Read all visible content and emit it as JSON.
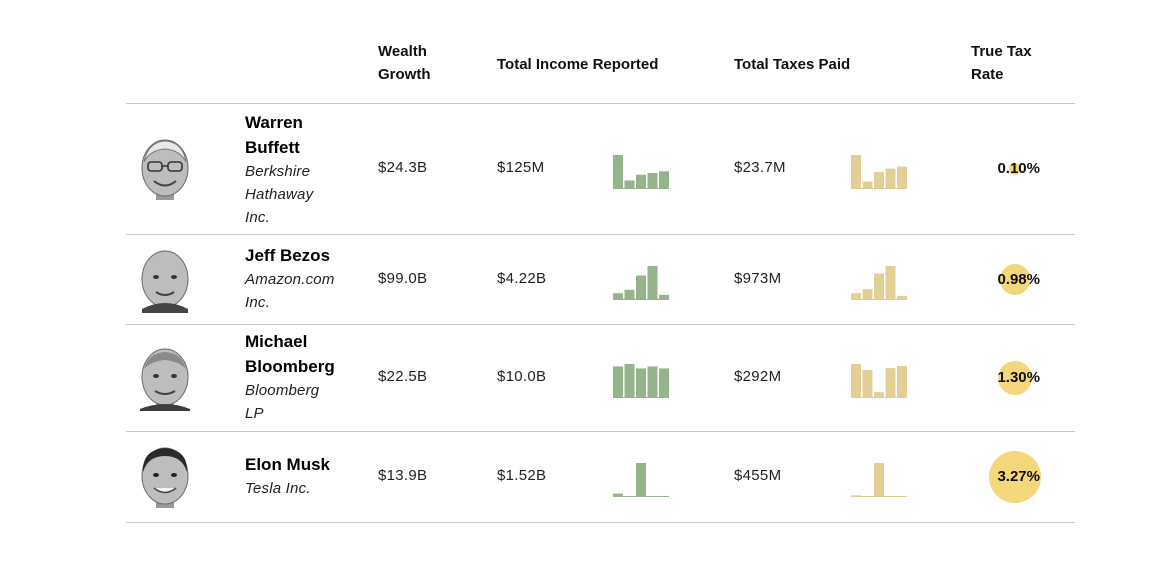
{
  "colors": {
    "income_bar": "#96b48c",
    "taxes_bar": "#e3cf96",
    "rate_circle": "#f4d77a",
    "rule": "#c8c8c8"
  },
  "header": {
    "wealth_growth": [
      "Wealth",
      "Growth"
    ],
    "total_income": "Total Income Reported",
    "total_taxes": "Total Taxes Paid",
    "true_tax_rate": [
      "True Tax",
      "Rate"
    ]
  },
  "chart_data": {
    "type": "table",
    "columns": [
      "",
      "Wealth Growth",
      "Total Income Reported",
      "Total Taxes Paid",
      "True Tax Rate"
    ],
    "rows": [
      {
        "name": [
          "Warren",
          "Buffett"
        ],
        "company": [
          "Berkshire",
          "Hathaway",
          "Inc."
        ],
        "avatar": "warren-buffett-avatar",
        "wealth_growth": "$24.3B",
        "total_income": "$125M",
        "income_bars": [
          1.0,
          0.25,
          0.42,
          0.47,
          0.52
        ],
        "total_taxes": "$23.7M",
        "taxes_bars": [
          1.0,
          0.22,
          0.5,
          0.6,
          0.66
        ],
        "true_tax_rate": "0.10%",
        "rate_value": 0.1
      },
      {
        "name": [
          "Jeff Bezos"
        ],
        "company": [
          "Amazon.com",
          "Inc."
        ],
        "avatar": "jeff-bezos-avatar",
        "wealth_growth": "$99.0B",
        "total_income": "$4.22B",
        "income_bars": [
          0.2,
          0.3,
          0.72,
          1.0,
          0.15
        ],
        "total_taxes": "$973M",
        "taxes_bars": [
          0.2,
          0.32,
          0.78,
          1.0,
          0.12
        ],
        "true_tax_rate": "0.98%",
        "rate_value": 0.98
      },
      {
        "name": [
          "Michael",
          "Bloomberg"
        ],
        "company": [
          "Bloomberg",
          "LP"
        ],
        "avatar": "michael-bloomberg-avatar",
        "wealth_growth": "$22.5B",
        "total_income": "$10.0B",
        "income_bars": [
          0.93,
          1.0,
          0.87,
          0.93,
          0.87
        ],
        "total_taxes": "$292M",
        "taxes_bars": [
          1.0,
          0.82,
          0.17,
          0.88,
          0.94
        ],
        "true_tax_rate": "1.30%",
        "rate_value": 1.3
      },
      {
        "name": [
          "Elon Musk"
        ],
        "company": [
          "Tesla Inc."
        ],
        "avatar": "elon-musk-avatar",
        "wealth_growth": "$13.9B",
        "total_income": "$1.52B",
        "income_bars": [
          0.1,
          0.02,
          1.0,
          0.02,
          0.02
        ],
        "total_taxes": "$455M",
        "taxes_bars": [
          0.05,
          0.02,
          1.0,
          0.02,
          0.02
        ],
        "true_tax_rate": "3.27%",
        "rate_value": 3.27
      }
    ]
  }
}
